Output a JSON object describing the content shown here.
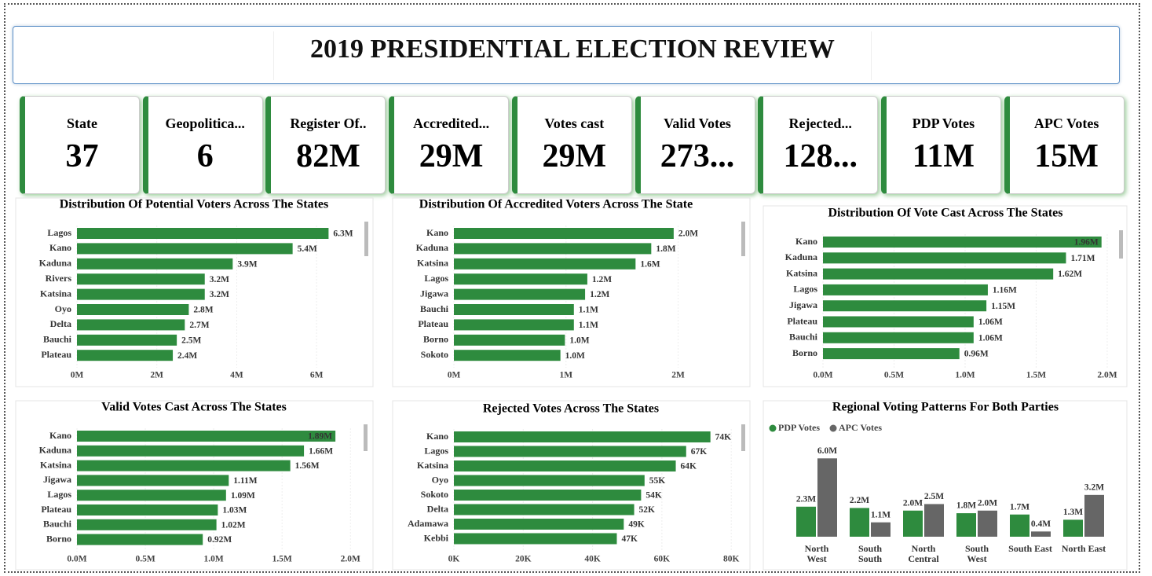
{
  "header": {
    "title": "2019 PRESIDENTIAL ELECTION REVIEW"
  },
  "kpis": [
    {
      "label": "State",
      "value": "37"
    },
    {
      "label": "Geopolitica...",
      "value": "6"
    },
    {
      "label": "Register Of..",
      "value": "82M"
    },
    {
      "label": "Accredited...",
      "value": "29M"
    },
    {
      "label": "Votes cast",
      "value": "29M"
    },
    {
      "label": "Valid Votes",
      "value": "273..."
    },
    {
      "label": "Rejected...",
      "value": "128..."
    },
    {
      "label": "PDP Votes",
      "value": "11M"
    },
    {
      "label": "APC Votes",
      "value": "15M"
    }
  ],
  "chart_data": [
    {
      "type": "hbar",
      "title": "Distribution Of Potential Voters Across The States",
      "color": "#2e8b3e",
      "categories": [
        "Lagos",
        "Kano",
        "Kaduna",
        "Rivers",
        "Katsina",
        "Oyo",
        "Delta",
        "Bauchi",
        "Plateau"
      ],
      "values": [
        6.3,
        5.4,
        3.9,
        3.2,
        3.2,
        2.8,
        2.7,
        2.5,
        2.4
      ],
      "value_labels": [
        "6.3M",
        "5.4M",
        "3.9M",
        "3.2M",
        "3.2M",
        "2.8M",
        "2.7M",
        "2.5M",
        "2.4M"
      ],
      "xlim": [
        0,
        7
      ],
      "xticks": [
        {
          "value": 0,
          "label": "0M"
        },
        {
          "value": 2,
          "label": "2M"
        },
        {
          "value": 4,
          "label": "4M"
        },
        {
          "value": 6,
          "label": "6M"
        }
      ]
    },
    {
      "type": "hbar",
      "title": "Distribution Of Accredited Voters Across The State",
      "color": "#2e8b3e",
      "categories": [
        "Kano",
        "Kaduna",
        "Katsina",
        "Lagos",
        "Jigawa",
        "Bauchi",
        "Plateau",
        "Borno",
        "Sokoto"
      ],
      "values": [
        1.96,
        1.76,
        1.62,
        1.19,
        1.17,
        1.07,
        1.07,
        0.99,
        0.95
      ],
      "value_labels": [
        "2.0M",
        "1.8M",
        "1.6M",
        "1.2M",
        "1.2M",
        "1.1M",
        "1.1M",
        "1.0M",
        "1.0M"
      ],
      "xlim": [
        0,
        2.5
      ],
      "xticks": [
        {
          "value": 0,
          "label": "0M"
        },
        {
          "value": 1,
          "label": "1M"
        },
        {
          "value": 2,
          "label": "2M"
        }
      ]
    },
    {
      "type": "hbar",
      "title": "Distribution Of Vote Cast Across The States",
      "color": "#2e8b3e",
      "categories": [
        "Kano",
        "Kaduna",
        "Katsina",
        "Lagos",
        "Jigawa",
        "Plateau",
        "Bauchi",
        "Borno"
      ],
      "values": [
        1.96,
        1.71,
        1.62,
        1.16,
        1.15,
        1.06,
        1.06,
        0.96
      ],
      "value_labels": [
        "1.96M",
        "1.71M",
        "1.62M",
        "1.16M",
        "1.15M",
        "1.06M",
        "1.06M",
        "0.96M"
      ],
      "xlim": [
        0,
        2.05
      ],
      "xticks": [
        {
          "value": 0,
          "label": "0.0M"
        },
        {
          "value": 0.5,
          "label": "0.5M"
        },
        {
          "value": 1,
          "label": "1.0M"
        },
        {
          "value": 1.5,
          "label": "1.5M"
        },
        {
          "value": 2,
          "label": "2.0M"
        }
      ]
    },
    {
      "type": "hbar",
      "title": "Valid Votes Cast Across The States",
      "color": "#2e8b3e",
      "categories": [
        "Kano",
        "Kaduna",
        "Katsina",
        "Jigawa",
        "Lagos",
        "Plateau",
        "Bauchi",
        "Borno"
      ],
      "values": [
        1.89,
        1.66,
        1.56,
        1.11,
        1.09,
        1.03,
        1.02,
        0.92
      ],
      "value_labels": [
        "1.89M",
        "1.66M",
        "1.56M",
        "1.11M",
        "1.09M",
        "1.03M",
        "1.02M",
        "0.92M"
      ],
      "xlim": [
        0,
        2.05
      ],
      "xticks": [
        {
          "value": 0,
          "label": "0.0M"
        },
        {
          "value": 0.5,
          "label": "0.5M"
        },
        {
          "value": 1,
          "label": "1.0M"
        },
        {
          "value": 1.5,
          "label": "1.5M"
        },
        {
          "value": 2,
          "label": "2.0M"
        }
      ]
    },
    {
      "type": "hbar",
      "title": "Rejected Votes Across The States",
      "color": "#2e8b3e",
      "categories": [
        "Kano",
        "Lagos",
        "Katsina",
        "Oyo",
        "Sokoto",
        "Delta",
        "Adamawa",
        "Kebbi"
      ],
      "values": [
        74,
        67,
        64,
        55,
        54,
        52,
        49,
        47
      ],
      "value_labels": [
        "74K",
        "67K",
        "64K",
        "55K",
        "54K",
        "52K",
        "49K",
        "47K"
      ],
      "xlim": [
        0,
        82
      ],
      "xticks": [
        {
          "value": 0,
          "label": "0K"
        },
        {
          "value": 20,
          "label": "20K"
        },
        {
          "value": 40,
          "label": "40K"
        },
        {
          "value": 60,
          "label": "60K"
        },
        {
          "value": 80,
          "label": "80K"
        }
      ]
    },
    {
      "type": "column",
      "title": "Regional Voting Patterns For Both Parties",
      "categories": [
        "North West",
        "South South",
        "North Central",
        "South West",
        "South East",
        "North East"
      ],
      "series": [
        {
          "name": "PDP Votes",
          "color": "#2e8b3e",
          "values": [
            2.3,
            2.2,
            2.0,
            1.8,
            1.7,
            1.3
          ],
          "value_labels": [
            "2.3M",
            "2.2M",
            "2.0M",
            "1.8M",
            "1.7M",
            "1.3M"
          ]
        },
        {
          "name": "APC Votes",
          "color": "#666666",
          "values": [
            6.0,
            1.1,
            2.5,
            2.0,
            0.4,
            3.2
          ],
          "value_labels": [
            "6.0M",
            "1.1M",
            "2.5M",
            "2.0M",
            "0.4M",
            "3.2M"
          ]
        }
      ],
      "ylim": [
        0,
        6.5
      ]
    }
  ]
}
